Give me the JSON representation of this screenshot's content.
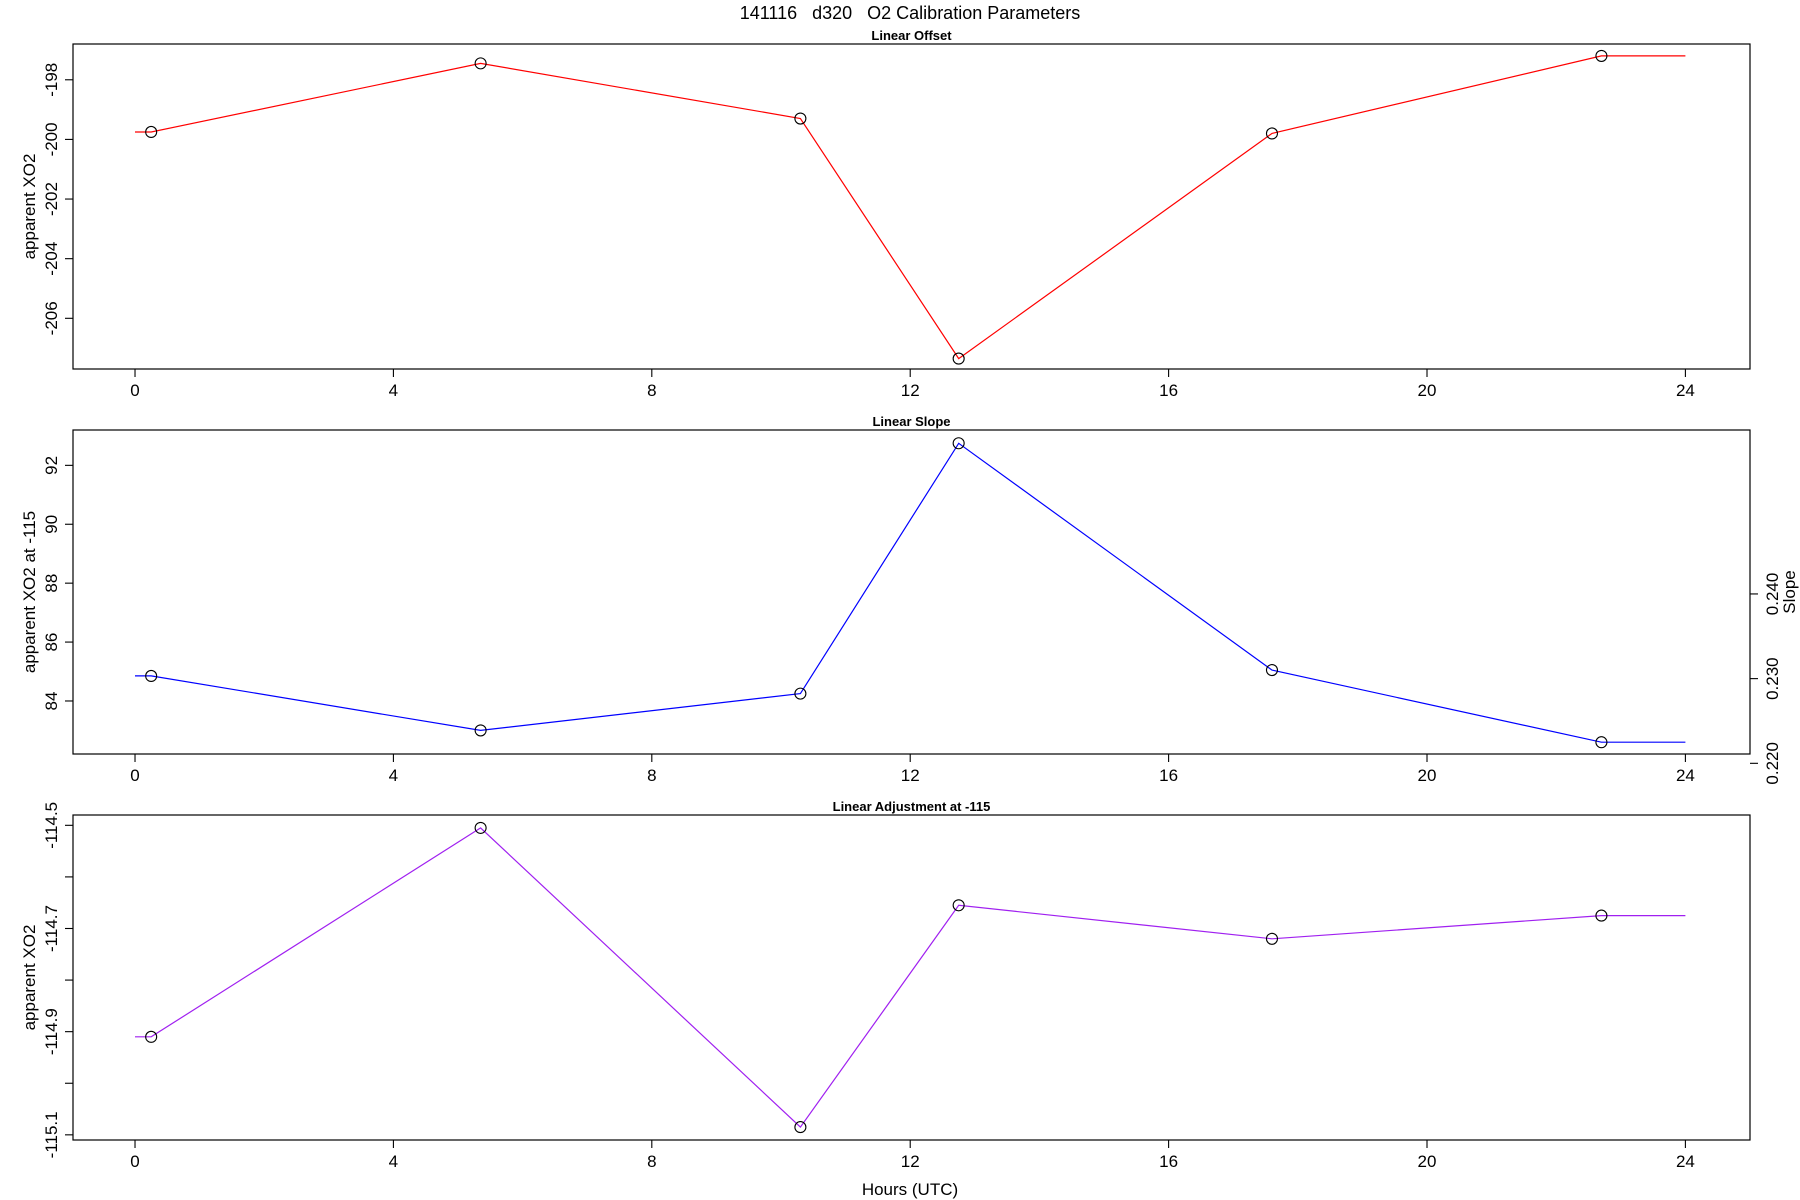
{
  "figure": {
    "title": "141116   d320   O2 Calibration Parameters",
    "xlabel": "Hours (UTC)"
  },
  "chart_data": [
    {
      "type": "line",
      "title": "Linear Offset",
      "xlabel": "",
      "ylabel": "apparent XO2",
      "color": "#ff0000",
      "x": [
        0.25,
        5.35,
        10.3,
        12.75,
        17.6,
        22.7,
        24.0
      ],
      "y": [
        -199.75,
        -197.45,
        -199.3,
        -207.35,
        -199.8,
        -197.2,
        -197.2
      ],
      "markers": [
        true,
        true,
        true,
        true,
        true,
        true,
        false
      ],
      "line_start_x": 0.0,
      "xlim": [
        -0.96,
        25.0
      ],
      "ylim": [
        -207.7,
        -196.8
      ],
      "xticks": [
        0,
        4,
        8,
        12,
        16,
        20,
        24
      ],
      "yticks": [
        -198,
        -200,
        -202,
        -204,
        -206
      ]
    },
    {
      "type": "line",
      "title": "Linear Slope",
      "xlabel": "",
      "ylabel": "apparent XO2 at -115",
      "y2label": "Slope",
      "color": "#0000ff",
      "x": [
        0.25,
        5.35,
        10.3,
        12.75,
        17.6,
        22.7,
        24.0
      ],
      "y": [
        84.85,
        83.0,
        84.25,
        92.75,
        85.05,
        82.6,
        82.6
      ],
      "markers": [
        true,
        true,
        true,
        true,
        true,
        true,
        false
      ],
      "line_start_x": 0.0,
      "xlim": [
        -0.96,
        25.0
      ],
      "ylim": [
        82.2,
        93.2
      ],
      "xticks": [
        0,
        4,
        8,
        12,
        16,
        20,
        24
      ],
      "yticks": [
        84,
        86,
        88,
        90,
        92
      ],
      "y2ticks": [
        0.22,
        0.23,
        0.24
      ],
      "y2ticklabels": [
        "0.220",
        "0.230",
        "0.240"
      ],
      "y2_at_left": 0.2211,
      "y2_per_unit": 0.003478
    },
    {
      "type": "line",
      "title": "Linear Adjustment at -115",
      "xlabel": "",
      "ylabel": "apparent XO2",
      "color": "#a020f0",
      "x": [
        0.25,
        5.35,
        10.3,
        12.75,
        17.6,
        22.7,
        24.0
      ],
      "y": [
        -114.91,
        -114.505,
        -115.085,
        -114.655,
        -114.72,
        -114.675,
        -114.675
      ],
      "markers": [
        true,
        true,
        true,
        true,
        true,
        true,
        false
      ],
      "line_start_x": 0.0,
      "xlim": [
        -0.96,
        25.0
      ],
      "ylim": [
        -115.11,
        -114.48
      ],
      "xticks": [
        0,
        4,
        8,
        12,
        16,
        20,
        24
      ],
      "yticks": [
        -114.5,
        -114.6,
        -114.7,
        -114.8,
        -114.9,
        -115.0,
        -115.1
      ],
      "ytick_labels": [
        "-114.5",
        "",
        "-114.7",
        "",
        "-114.9",
        "",
        "-115.1"
      ]
    }
  ]
}
